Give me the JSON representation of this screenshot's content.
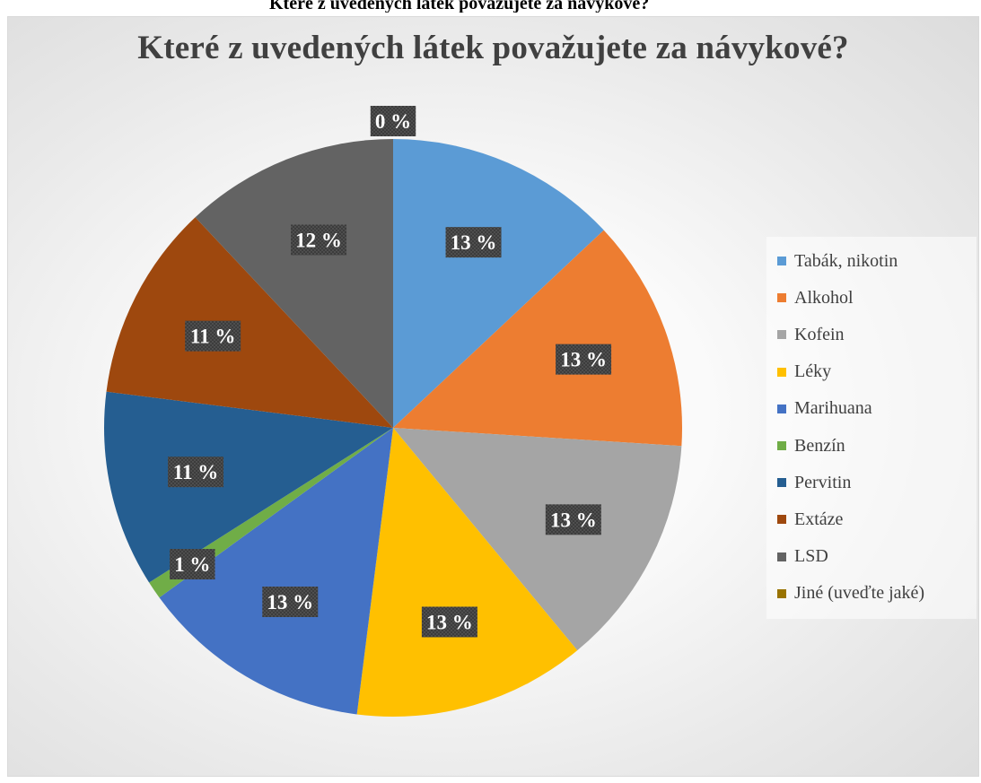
{
  "page": {
    "top_strip_text": "Které z uvedených látek považujete za návykové?"
  },
  "chart_data": {
    "type": "pie",
    "title": "Které z uvedených látek považujete za návykové?",
    "legend_position": "right",
    "start_angle_deg": 0,
    "direction": "clockwise",
    "slices": [
      {
        "label": "Tabák, nikotin",
        "value": 13,
        "display": "13 %",
        "color": "#5B9BD5"
      },
      {
        "label": "Alkohol",
        "value": 13,
        "display": "13 %",
        "color": "#ED7D31"
      },
      {
        "label": "Kofein",
        "value": 13,
        "display": "13 %",
        "color": "#A5A5A5"
      },
      {
        "label": "Léky",
        "value": 13,
        "display": "13 %",
        "color": "#FFC000"
      },
      {
        "label": "Marihuana",
        "value": 13,
        "display": "13 %",
        "color": "#4472C4"
      },
      {
        "label": "Benzín",
        "value": 1,
        "display": "1 %",
        "color": "#70AD47"
      },
      {
        "label": "Pervitin",
        "value": 11,
        "display": "11 %",
        "color": "#255E91"
      },
      {
        "label": "Extáze",
        "value": 11,
        "display": "11 %",
        "color": "#9E480E"
      },
      {
        "label": "LSD",
        "value": 12,
        "display": "12 %",
        "color": "#636363"
      },
      {
        "label": "Jiné (uveďte jaké)",
        "value": 0,
        "display": "0 %",
        "color": "#997300"
      }
    ]
  }
}
